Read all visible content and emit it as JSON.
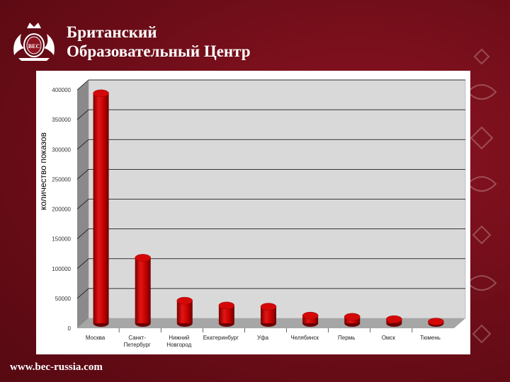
{
  "header": {
    "brand_line1": "Британский",
    "brand_line2": "Образовательный Центр",
    "logo_icon": "crest-logo-icon",
    "logo_text": "BEC"
  },
  "footer": {
    "url": "www.bec-russia.com"
  },
  "colors": {
    "background": "#6d0d18",
    "bar": "#cc0000",
    "wall": "#d9d9d9"
  },
  "chart_data": {
    "type": "bar",
    "title": "",
    "xlabel": "",
    "ylabel": "количество показов",
    "ylim": [
      0,
      400000
    ],
    "yticks": [
      0,
      50000,
      100000,
      150000,
      200000,
      250000,
      300000,
      350000,
      400000
    ],
    "grid": true,
    "legend": "none",
    "categories": [
      [
        "Москва"
      ],
      [
        "Санкт-",
        "Петербург"
      ],
      [
        "Нижний",
        "Новгород"
      ],
      [
        "Екатеринбург"
      ],
      [
        "Уфа"
      ],
      [
        "Челябинск"
      ],
      [
        "Пермь"
      ],
      [
        "Омск"
      ],
      [
        "Тюмень"
      ]
    ],
    "values": [
      393000,
      117000,
      45000,
      37000,
      35000,
      20000,
      18000,
      14000,
      10000
    ]
  }
}
